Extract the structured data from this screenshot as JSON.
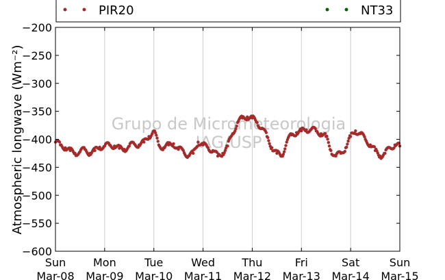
{
  "chart_data": {
    "type": "scatter",
    "ylabel": "Atmospheric longwave (Wm⁻²)",
    "ylim": [
      -600,
      -200
    ],
    "yticks": [
      -200,
      -250,
      -300,
      -350,
      -400,
      -450,
      -500,
      -550,
      -600
    ],
    "ytick_labels": [
      "−200",
      "−250",
      "−300",
      "−350",
      "−400",
      "−450",
      "−500",
      "−550",
      "−600"
    ],
    "xlim": [
      "2015-03-08",
      "2015-03-15"
    ],
    "xticks": [
      {
        "day": "Sun",
        "date": "Mar-08"
      },
      {
        "day": "Mon",
        "date": "Mar-09"
      },
      {
        "day": "Tue",
        "date": "Mar-10"
      },
      {
        "day": "Wed",
        "date": "Mar-11"
      },
      {
        "day": "Thu",
        "date": "Mar-12"
      },
      {
        "day": "Fri",
        "date": "Mar-13"
      },
      {
        "day": "Sat",
        "date": "Mar-14"
      },
      {
        "day": "Sun",
        "date": "Mar-15"
      }
    ],
    "grid": "vertical",
    "legend": "top",
    "series": [
      {
        "name": "PIR20",
        "color": "#a52a2a",
        "x_days_from_mar08": [
          0.0,
          0.1,
          0.2,
          0.3,
          0.4,
          0.5,
          0.6,
          0.7,
          0.8,
          0.9,
          1.0,
          1.1,
          1.2,
          1.3,
          1.4,
          1.5,
          1.6,
          1.7,
          1.8,
          1.9,
          2.0,
          2.1,
          2.2,
          2.3,
          2.4,
          2.5,
          2.6,
          2.7,
          2.8,
          2.9,
          3.0,
          3.1,
          3.2,
          3.3,
          3.4,
          3.5,
          3.6,
          3.7,
          3.8,
          3.9,
          4.0,
          4.1,
          4.2,
          4.3,
          4.4,
          4.5,
          4.6,
          4.7,
          4.8,
          4.9,
          5.0,
          5.1,
          5.2,
          5.3,
          5.4,
          5.5,
          5.6,
          5.7,
          5.8,
          5.9,
          6.0,
          6.1,
          6.2,
          6.3,
          6.4,
          6.5,
          6.6,
          6.7,
          6.8,
          6.9,
          7.0
        ],
        "values": [
          -405,
          -410,
          -415,
          -420,
          -425,
          -422,
          -418,
          -425,
          -420,
          -414,
          -412,
          -410,
          -412,
          -416,
          -418,
          -412,
          -408,
          -410,
          -405,
          -395,
          -385,
          -410,
          -415,
          -410,
          -408,
          -418,
          -420,
          -430,
          -425,
          -405,
          -410,
          -415,
          -420,
          -430,
          -425,
          -412,
          -390,
          -370,
          -362,
          -360,
          -362,
          -370,
          -380,
          -395,
          -415,
          -425,
          -430,
          -405,
          -392,
          -388,
          -385,
          -383,
          -382,
          -385,
          -390,
          -395,
          -420,
          -430,
          -425,
          -415,
          -395,
          -385,
          -390,
          -400,
          -410,
          -420,
          -430,
          -425,
          -415,
          -410,
          -412
        ]
      },
      {
        "name": "NT33",
        "color": "#006400",
        "x_days_from_mar08": [],
        "values": []
      }
    ]
  },
  "watermark": {
    "line1": "Grupo de Micrometeorologia",
    "line2": "IAG/USP"
  }
}
